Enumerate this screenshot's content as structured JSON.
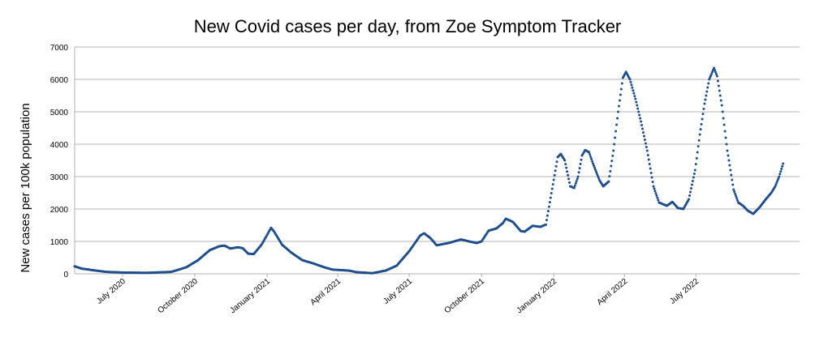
{
  "chart_data": {
    "type": "scatter",
    "title": "New Covid cases per day, from Zoe Symptom Tracker",
    "xlabel": "",
    "ylabel": "New cases per 100k population",
    "ylim": [
      0,
      7000
    ],
    "xlim": [
      "2020-05-01",
      "2022-11-10"
    ],
    "y_ticks": [
      "0",
      "1000",
      "2000",
      "3000",
      "4000",
      "5000",
      "6000",
      "7000"
    ],
    "x_ticks": [
      {
        "label": "July 2020",
        "date": "2020-07-01"
      },
      {
        "label": "October 2020",
        "date": "2020-10-01"
      },
      {
        "label": "January 2021",
        "date": "2021-01-01"
      },
      {
        "label": "April 2021",
        "date": "2021-04-01"
      },
      {
        "label": "July 2021",
        "date": "2021-07-01"
      },
      {
        "label": "October 2021",
        "date": "2021-10-01"
      },
      {
        "label": "January 2022",
        "date": "2022-01-01"
      },
      {
        "label": "April 2022",
        "date": "2022-04-01"
      },
      {
        "label": "July 2022",
        "date": "2022-07-01"
      }
    ],
    "grid": "horizontal",
    "marker_color": "#1f4e8c",
    "series": [
      {
        "name": "",
        "points": [
          [
            "2020-05-01",
            230
          ],
          [
            "2020-05-10",
            160
          ],
          [
            "2020-05-25",
            110
          ],
          [
            "2020-06-10",
            60
          ],
          [
            "2020-07-01",
            40
          ],
          [
            "2020-08-01",
            30
          ],
          [
            "2020-09-01",
            60
          ],
          [
            "2020-09-20",
            200
          ],
          [
            "2020-10-05",
            420
          ],
          [
            "2020-10-20",
            730
          ],
          [
            "2020-11-01",
            850
          ],
          [
            "2020-11-08",
            870
          ],
          [
            "2020-11-15",
            780
          ],
          [
            "2020-11-25",
            820
          ],
          [
            "2020-12-01",
            790
          ],
          [
            "2020-12-08",
            620
          ],
          [
            "2020-12-15",
            610
          ],
          [
            "2020-12-25",
            900
          ],
          [
            "2021-01-01",
            1200
          ],
          [
            "2021-01-06",
            1420
          ],
          [
            "2021-01-10",
            1300
          ],
          [
            "2021-01-20",
            900
          ],
          [
            "2021-02-01",
            650
          ],
          [
            "2021-02-15",
            420
          ],
          [
            "2021-03-01",
            320
          ],
          [
            "2021-03-15",
            200
          ],
          [
            "2021-03-25",
            130
          ],
          [
            "2021-04-01",
            120
          ],
          [
            "2021-04-15",
            100
          ],
          [
            "2021-04-25",
            50
          ],
          [
            "2021-05-15",
            20
          ],
          [
            "2021-06-01",
            100
          ],
          [
            "2021-06-15",
            250
          ],
          [
            "2021-07-01",
            700
          ],
          [
            "2021-07-15",
            1180
          ],
          [
            "2021-07-20",
            1250
          ],
          [
            "2021-07-28",
            1100
          ],
          [
            "2021-08-05",
            880
          ],
          [
            "2021-08-20",
            950
          ],
          [
            "2021-09-05",
            1060
          ],
          [
            "2021-09-15",
            1000
          ],
          [
            "2021-09-25",
            950
          ],
          [
            "2021-10-01",
            1000
          ],
          [
            "2021-10-10",
            1330
          ],
          [
            "2021-10-20",
            1400
          ],
          [
            "2021-10-28",
            1560
          ],
          [
            "2021-11-01",
            1700
          ],
          [
            "2021-11-10",
            1600
          ],
          [
            "2021-11-20",
            1320
          ],
          [
            "2021-11-25",
            1300
          ],
          [
            "2021-12-05",
            1480
          ],
          [
            "2021-12-15",
            1450
          ],
          [
            "2021-12-22",
            1520
          ],
          [
            "2022-01-01",
            2900
          ],
          [
            "2022-01-06",
            3600
          ],
          [
            "2022-01-10",
            3700
          ],
          [
            "2022-01-15",
            3500
          ],
          [
            "2022-01-22",
            2700
          ],
          [
            "2022-01-27",
            2650
          ],
          [
            "2022-02-01",
            3000
          ],
          [
            "2022-02-06",
            3650
          ],
          [
            "2022-02-10",
            3820
          ],
          [
            "2022-02-15",
            3750
          ],
          [
            "2022-02-20",
            3400
          ],
          [
            "2022-02-28",
            2900
          ],
          [
            "2022-03-05",
            2700
          ],
          [
            "2022-03-12",
            2850
          ],
          [
            "2022-03-18",
            3800
          ],
          [
            "2022-03-24",
            5000
          ],
          [
            "2022-03-30",
            6050
          ],
          [
            "2022-04-03",
            6230
          ],
          [
            "2022-04-08",
            6000
          ],
          [
            "2022-04-15",
            5400
          ],
          [
            "2022-04-22",
            4700
          ],
          [
            "2022-04-30",
            3800
          ],
          [
            "2022-05-08",
            2700
          ],
          [
            "2022-05-15",
            2200
          ],
          [
            "2022-05-25",
            2100
          ],
          [
            "2022-06-01",
            2220
          ],
          [
            "2022-06-08",
            2030
          ],
          [
            "2022-06-15",
            2000
          ],
          [
            "2022-06-22",
            2300
          ],
          [
            "2022-06-30",
            3200
          ],
          [
            "2022-07-06",
            4300
          ],
          [
            "2022-07-12",
            5250
          ],
          [
            "2022-07-18",
            6000
          ],
          [
            "2022-07-24",
            6350
          ],
          [
            "2022-07-28",
            6100
          ],
          [
            "2022-08-03",
            5200
          ],
          [
            "2022-08-10",
            3800
          ],
          [
            "2022-08-18",
            2600
          ],
          [
            "2022-08-24",
            2200
          ],
          [
            "2022-08-30",
            2100
          ],
          [
            "2022-09-05",
            1950
          ],
          [
            "2022-09-12",
            1850
          ],
          [
            "2022-09-20",
            2050
          ],
          [
            "2022-09-28",
            2300
          ],
          [
            "2022-10-05",
            2500
          ],
          [
            "2022-10-10",
            2700
          ],
          [
            "2022-10-15",
            3000
          ],
          [
            "2022-10-20",
            3400
          ]
        ]
      }
    ]
  }
}
